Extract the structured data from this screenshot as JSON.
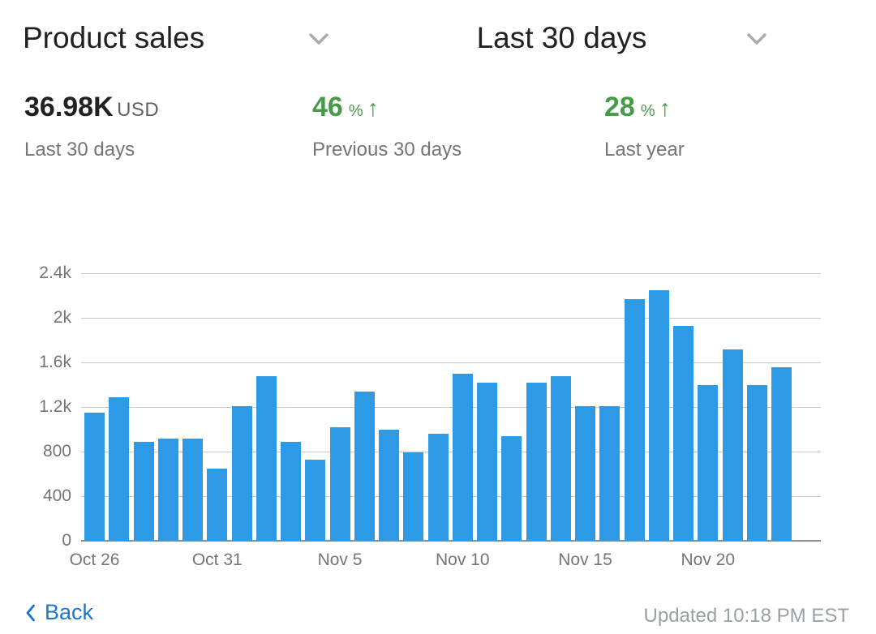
{
  "header": {
    "metric_selector": {
      "label": "Product sales"
    },
    "range_selector": {
      "label": "Last 30 days"
    }
  },
  "stats": {
    "primary": {
      "value": "36.98K",
      "unit": "USD",
      "caption": "Last 30 days"
    },
    "comparisons": [
      {
        "value": "46",
        "unit": "%",
        "arrow_icon": "↑",
        "direction": "up",
        "caption": "Previous 30 days"
      },
      {
        "value": "28",
        "unit": "%",
        "arrow_icon": "↑",
        "direction": "up",
        "caption": "Last year"
      }
    ]
  },
  "chart_data": {
    "type": "bar",
    "title": "Product sales",
    "x": [
      "Oct 26",
      "Oct 27",
      "Oct 28",
      "Oct 29",
      "Oct 30",
      "Oct 31",
      "Nov 1",
      "Nov 2",
      "Nov 3",
      "Nov 4",
      "Nov 5",
      "Nov 6",
      "Nov 7",
      "Nov 8",
      "Nov 9",
      "Nov 10",
      "Nov 11",
      "Nov 12",
      "Nov 13",
      "Nov 14",
      "Nov 15",
      "Nov 16",
      "Nov 17",
      "Nov 18",
      "Nov 19",
      "Nov 20",
      "Nov 21",
      "Nov 22",
      "Nov 23"
    ],
    "values": [
      1150,
      1290,
      890,
      915,
      915,
      650,
      1210,
      1480,
      890,
      730,
      1020,
      1340,
      1000,
      790,
      960,
      1500,
      1420,
      940,
      1420,
      1480,
      1210,
      1210,
      2170,
      2250,
      1930,
      1400,
      1720,
      1400,
      1560
    ],
    "ylim": [
      0,
      2400
    ],
    "yticks": [
      0,
      400,
      800,
      1200,
      1600,
      2000,
      2400
    ],
    "ytick_labels": [
      "0",
      "400",
      "800",
      "1.2k",
      "1.6k",
      "2k",
      "2.4k"
    ],
    "xtick_labels": [
      "Oct 26",
      "Oct 31",
      "Nov 5",
      "Nov 10",
      "Nov 15",
      "Nov 20"
    ],
    "xtick_every": 5,
    "bar_color": "#2D9AE8",
    "grid": true,
    "legend": "none"
  },
  "footer": {
    "back_label": "Back",
    "updated": "Updated 10:18 PM EST"
  },
  "colors": {
    "accent_blue": "#2D9AE8",
    "positive_green": "#469B47",
    "link_blue": "#1976D2",
    "text_primary": "#212121",
    "text_secondary": "#757575",
    "text_muted": "#9AA0A6"
  }
}
